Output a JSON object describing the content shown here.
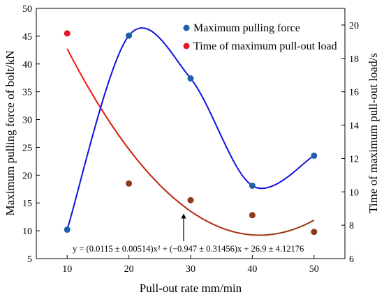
{
  "chart_data": {
    "type": "scatter",
    "x": [
      10,
      20,
      30,
      40,
      50
    ],
    "xlabel": "Pull-out rate mm/min",
    "xlim": [
      5,
      55
    ],
    "x_ticks": [
      10,
      20,
      30,
      40,
      50
    ],
    "ylabel_left": "Maximum pulling force of bolt/kN",
    "ylim_left": [
      5,
      50
    ],
    "y_ticks_left": [
      5,
      10,
      15,
      20,
      25,
      30,
      35,
      40,
      45,
      50
    ],
    "ylabel_right": "Time of maximum pull-out load/s",
    "ylim_right": [
      6,
      21
    ],
    "y_ticks_right": [
      6,
      8,
      10,
      12,
      14,
      16,
      18,
      20
    ],
    "series": [
      {
        "name": "Maximum pulling force",
        "axis": "left",
        "values": [
          10.2,
          45.1,
          37.4,
          18.1,
          23.5
        ],
        "marker_color": "#1f5fa8",
        "fit_color": "#1111dd",
        "fit": "smooth-curve"
      },
      {
        "name": "Time of maximum pull-out load",
        "axis": "right",
        "values": [
          19.5,
          10.5,
          9.5,
          8.6,
          7.6
        ],
        "marker_colors": [
          "#e8142a",
          "#8b3a1a",
          "#8b3a1a",
          "#8b3a1a",
          "#8b3a1a"
        ],
        "fit_color_start": "#ff1010",
        "fit_color_end": "#8b3a0f",
        "fit_coefficients": [
          0.0115,
          -0.947,
          26.9
        ]
      }
    ],
    "annotation": {
      "equation": "y = (0.0115 ± 0.00514)x² + (−0.947 ± 0.31456)x + 26.9 ± 4.12176",
      "arrow_x": 29
    },
    "legend_position": "top-right",
    "grid": false
  }
}
